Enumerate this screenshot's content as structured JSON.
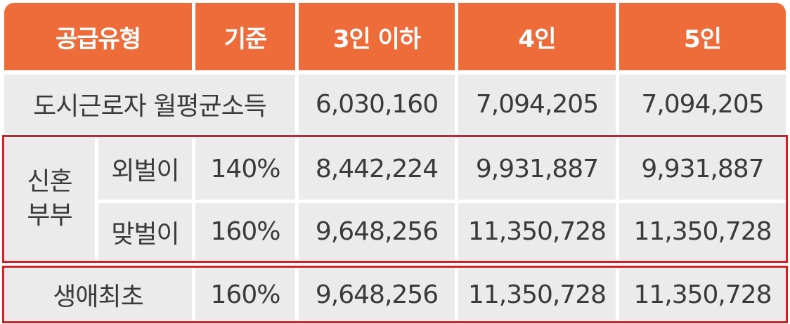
{
  "header": {
    "supply_type": "공급유형",
    "criterion": "기준",
    "col_3_or_less": "3인 이하",
    "col_4": "4인",
    "col_5": "5인"
  },
  "urban_worker_income": {
    "label": "도시근로자 월평균소득",
    "v3": "6,030,160",
    "v4": "7,094,205",
    "v5": "7,094,205"
  },
  "newlywed": {
    "group_label_line1": "신혼",
    "group_label_line2": "부부",
    "single_income": {
      "label": "외벌이",
      "criterion": "140%",
      "v3": "8,442,224",
      "v4": "9,931,887",
      "v5": "9,931,887"
    },
    "dual_income": {
      "label": "맞벌이",
      "criterion": "160%",
      "v3": "9,648,256",
      "v4": "11,350,728",
      "v5": "11,350,728"
    }
  },
  "first_time": {
    "label": "생애최초",
    "criterion": "160%",
    "v3": "9,648,256",
    "v4": "11,350,728",
    "v5": "11,350,728"
  },
  "colors": {
    "header_bg": "#ee6c3a",
    "header_text": "#ffffff",
    "cell_bg": "#ebebeb",
    "cell_text": "#3a3a3a",
    "highlight_border": "#d81e25"
  }
}
